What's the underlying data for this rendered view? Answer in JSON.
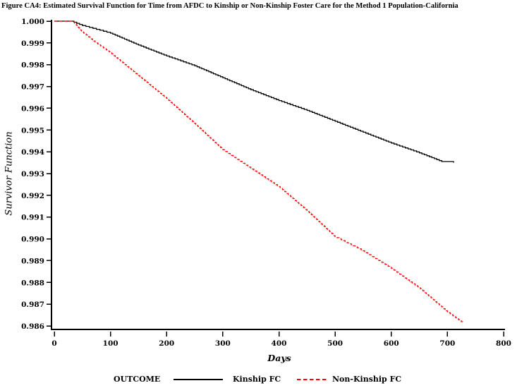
{
  "title": "Figure CA4:  Estimated Survival Function for Time from AFDC to Kinship or Non-Kinship Foster Care for the Method 1 Population-California",
  "colors": {
    "background": "#ffffff",
    "axis": "#000000",
    "kinship_line": "#000000",
    "non_kinship_line": "#ff0000"
  },
  "legend": {
    "label": "OUTCOME",
    "entries": [
      {
        "label": "Kinship FC",
        "style": "solid",
        "color": "#000000"
      },
      {
        "label": "Non-Kinship FC",
        "style": "dashed",
        "color": "#ff0000"
      }
    ]
  },
  "chart_data": {
    "type": "line",
    "title": "Figure CA4:  Estimated Survival Function for Time from AFDC to Kinship or Non-Kinship Foster Care for the Method 1 Population-California",
    "xlabel": "Days",
    "ylabel": "Survivor Function",
    "xlim": [
      0,
      800
    ],
    "ylim": [
      0.986,
      1.0
    ],
    "xticks": [
      0,
      100,
      200,
      300,
      400,
      500,
      600,
      700,
      800
    ],
    "yticks": [
      1.0,
      0.999,
      0.998,
      0.997,
      0.996,
      0.995,
      0.994,
      0.993,
      0.992,
      0.991,
      0.99,
      0.989,
      0.988,
      0.987,
      0.986
    ],
    "ytick_decimals": 3,
    "grid": false,
    "legend_position": "bottom",
    "curve_style": "kaplan-meier-steps",
    "series": [
      {
        "name": "Kinship FC",
        "color": "#000000",
        "line_style": "solid",
        "points": [
          [
            0,
            1.0
          ],
          [
            30,
            1.0
          ],
          [
            50,
            0.9998
          ],
          [
            100,
            0.99945
          ],
          [
            150,
            0.9989
          ],
          [
            200,
            0.9984
          ],
          [
            250,
            0.99795
          ],
          [
            300,
            0.9974
          ],
          [
            350,
            0.99685
          ],
          [
            400,
            0.99635
          ],
          [
            450,
            0.9959
          ],
          [
            500,
            0.9954
          ],
          [
            550,
            0.9949
          ],
          [
            600,
            0.9944
          ],
          [
            650,
            0.99395
          ],
          [
            690,
            0.99355
          ],
          [
            711,
            0.9935
          ]
        ]
      },
      {
        "name": "Non-Kinship FC",
        "color": "#ff0000",
        "line_style": "dashed",
        "points": [
          [
            0,
            1.0
          ],
          [
            33,
            1.0
          ],
          [
            50,
            0.9995
          ],
          [
            75,
            0.999
          ],
          [
            100,
            0.99855
          ],
          [
            150,
            0.9975
          ],
          [
            200,
            0.99645
          ],
          [
            250,
            0.9953
          ],
          [
            300,
            0.9941
          ],
          [
            350,
            0.99325
          ],
          [
            400,
            0.9924
          ],
          [
            450,
            0.9913
          ],
          [
            500,
            0.9901
          ],
          [
            550,
            0.98945
          ],
          [
            600,
            0.98865
          ],
          [
            650,
            0.98775
          ],
          [
            700,
            0.98665
          ],
          [
            727,
            0.98615
          ]
        ]
      }
    ]
  }
}
